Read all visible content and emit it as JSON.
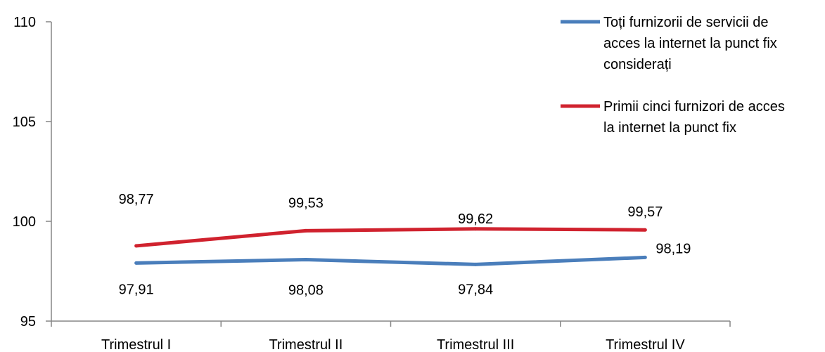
{
  "chart_data": {
    "type": "line",
    "categories": [
      "Trimestrul I",
      "Trimestrul II",
      "Trimestrul III",
      "Trimestrul IV"
    ],
    "series": [
      {
        "name": "Toți furnizorii de servicii de acces la internet la punct fix considerați",
        "legend_lines": [
          "Toți furnizorii de servicii de",
          "acces la internet la punct fix",
          "considerați"
        ],
        "color": "#4a7ebb",
        "values": [
          97.91,
          98.08,
          97.84,
          98.19
        ],
        "labels": [
          "97,91",
          "98,08",
          "97,84",
          "98,19"
        ]
      },
      {
        "name": "Primii cinci furnizori de acces la internet la punct fix",
        "legend_lines": [
          "Primii cinci furnizori de acces",
          "la internet la punct fix"
        ],
        "color": "#d0222e",
        "values": [
          98.77,
          99.53,
          99.62,
          99.57
        ],
        "labels": [
          "98,77",
          "99,53",
          "99,62",
          "99,57"
        ]
      }
    ],
    "ylim": [
      95,
      110
    ],
    "yticks": [
      95,
      100,
      105,
      110
    ],
    "title": "",
    "xlabel": "",
    "ylabel": "",
    "grid": false,
    "legend": "top-right"
  }
}
